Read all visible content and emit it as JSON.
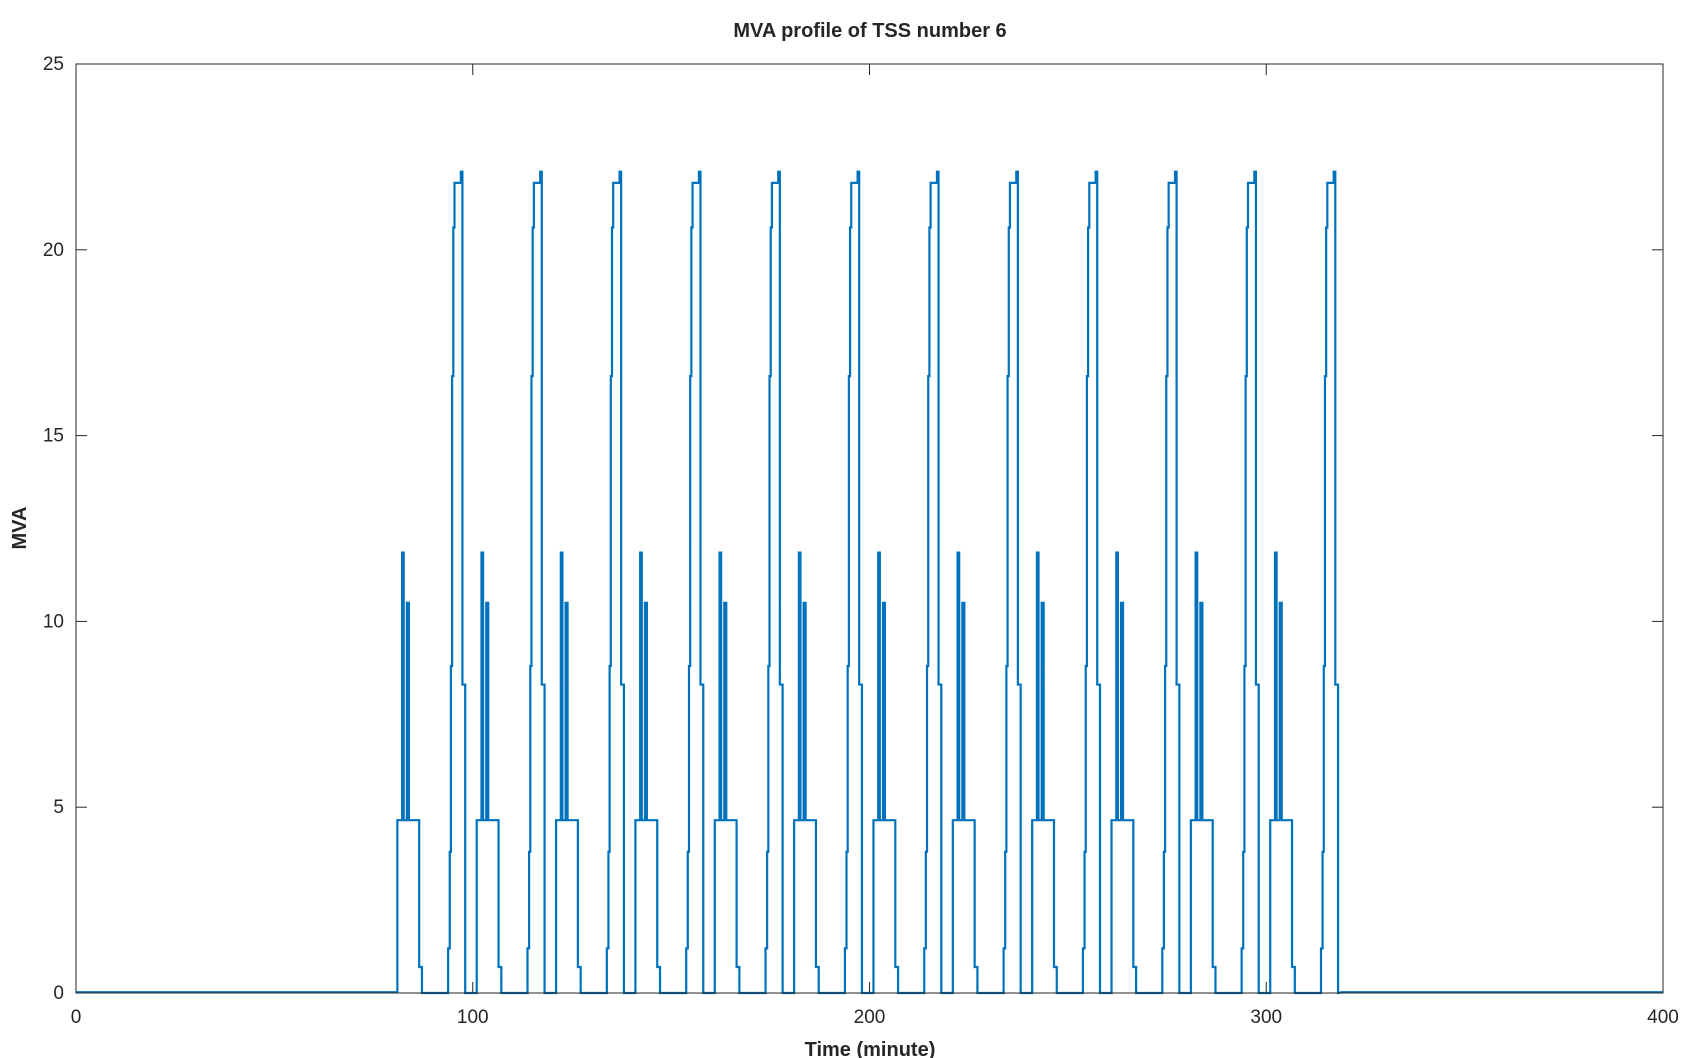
{
  "chart_data": {
    "type": "line",
    "title": "MVA profile of TSS number 6",
    "xlabel": "Time (minute)",
    "ylabel": "MVA",
    "xlim": [
      0,
      400
    ],
    "ylim": [
      0,
      25
    ],
    "xticks": [
      0,
      100,
      200,
      300,
      400
    ],
    "yticks": [
      0,
      5,
      10,
      15,
      20,
      25
    ],
    "grid": false,
    "legend": "none",
    "line_color": "#0072bd",
    "series": [
      {
        "type": "repeating-train-profile",
        "baseline_before": {
          "x": [
            0,
            81
          ],
          "y": 0.02
        },
        "baseline_after": {
          "x": [
            319,
            400
          ],
          "y": 0.02
        },
        "cycle_period_min": 20,
        "cycle_count": 12,
        "cycle_starts": [
          81,
          101,
          121,
          141,
          161,
          181,
          201,
          221,
          241,
          261,
          281,
          301
        ],
        "cycle_points": [
          [
            0,
            0
          ],
          [
            0,
            4.65
          ],
          [
            1.2,
            4.65
          ],
          [
            1.2,
            11.85
          ],
          [
            1.6,
            11.85
          ],
          [
            1.6,
            4.65
          ],
          [
            2.4,
            4.65
          ],
          [
            2.4,
            10.5
          ],
          [
            2.9,
            10.5
          ],
          [
            2.9,
            4.65
          ],
          [
            5.5,
            4.65
          ],
          [
            5.5,
            0.7
          ],
          [
            6.2,
            0.7
          ],
          [
            6.2,
            0
          ],
          [
            12.8,
            0
          ],
          [
            12.8,
            1.2
          ],
          [
            13.2,
            1.2
          ],
          [
            13.2,
            3.8
          ],
          [
            13.5,
            3.8
          ],
          [
            13.5,
            8.8
          ],
          [
            13.8,
            8.8
          ],
          [
            13.8,
            16.6
          ],
          [
            14.1,
            16.6
          ],
          [
            14.1,
            20.6
          ],
          [
            14.4,
            20.6
          ],
          [
            14.4,
            21.8
          ],
          [
            16,
            21.8
          ],
          [
            16,
            22.1
          ],
          [
            16.4,
            22.1
          ],
          [
            16.4,
            8.3
          ],
          [
            17.1,
            8.3
          ],
          [
            17.1,
            0
          ]
        ]
      }
    ]
  }
}
